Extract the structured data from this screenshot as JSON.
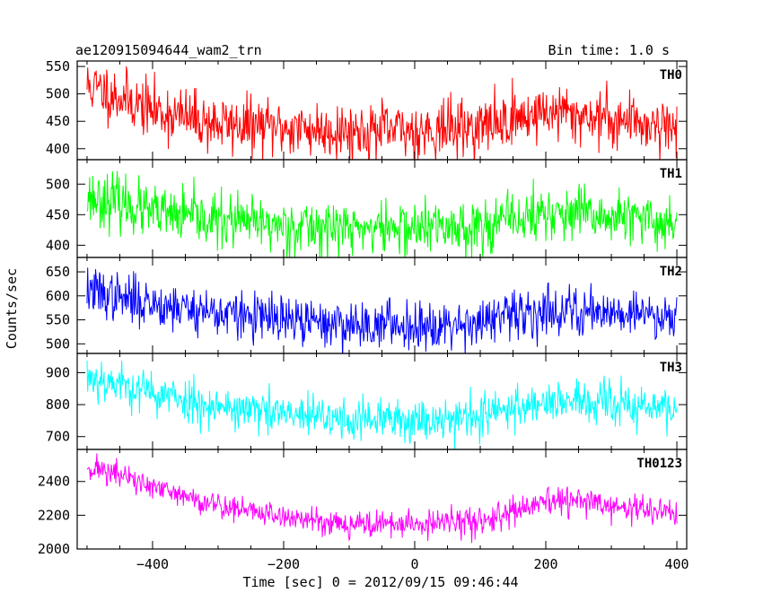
{
  "chart_data": {
    "type": "line",
    "title": "ae120915094644_wam2_trn",
    "subtitle": "Bin time: 1.0 s",
    "xlabel": "Time [sec] 0 = 2012/09/15 09:46:44",
    "ylabel": "Counts/sec",
    "xlim": [
      -515,
      415
    ],
    "x_ticks": [
      -400,
      -200,
      0,
      200,
      400
    ],
    "x_tick_labels": [
      "−400",
      "−200",
      "0",
      "200",
      "400"
    ],
    "x_range": [
      -500,
      400
    ],
    "series": [
      {
        "name": "TH0",
        "color": "#ff0000",
        "ylim": [
          380,
          560
        ],
        "y_ticks": [
          400,
          450,
          500,
          550
        ],
        "y_tick_labels": [
          "400",
          "450",
          "500",
          "550"
        ],
        "noise": 26,
        "seed": 11,
        "trend": {
          "x": [
            -500,
            -450,
            -400,
            -300,
            -200,
            -100,
            0,
            100,
            200,
            300,
            400
          ],
          "y": [
            515,
            495,
            470,
            445,
            438,
            432,
            433,
            440,
            468,
            455,
            440
          ]
        }
      },
      {
        "name": "TH1",
        "color": "#00ff00",
        "ylim": [
          380,
          540
        ],
        "y_ticks": [
          400,
          450,
          500
        ],
        "y_tick_labels": [
          "400",
          "450",
          "500"
        ],
        "noise": 22,
        "seed": 23,
        "trend": {
          "x": [
            -500,
            -450,
            -400,
            -300,
            -200,
            -100,
            0,
            100,
            200,
            300,
            400
          ],
          "y": [
            480,
            470,
            452,
            440,
            432,
            428,
            428,
            432,
            452,
            445,
            435
          ]
        }
      },
      {
        "name": "TH2",
        "color": "#0000ff",
        "ylim": [
          480,
          680
        ],
        "y_ticks": [
          500,
          550,
          600,
          650
        ],
        "y_tick_labels": [
          "500",
          "550",
          "600",
          "650"
        ],
        "noise": 25,
        "seed": 37,
        "trend": {
          "x": [
            -500,
            -450,
            -400,
            -300,
            -200,
            -100,
            0,
            100,
            200,
            300,
            400
          ],
          "y": [
            612,
            595,
            585,
            565,
            548,
            540,
            540,
            545,
            570,
            568,
            558
          ]
        }
      },
      {
        "name": "TH3",
        "color": "#00ffff",
        "ylim": [
          660,
          960
        ],
        "y_ticks": [
          700,
          800,
          900
        ],
        "y_tick_labels": [
          "700",
          "800",
          "900"
        ],
        "noise": 34,
        "seed": 53,
        "trend": {
          "x": [
            -500,
            -450,
            -400,
            -300,
            -200,
            -100,
            0,
            100,
            200,
            300,
            400
          ],
          "y": [
            890,
            865,
            835,
            795,
            768,
            752,
            752,
            765,
            812,
            800,
            785
          ]
        }
      },
      {
        "name": "TH0123",
        "color": "#ff00ff",
        "ylim": [
          2000,
          2590
        ],
        "y_ticks": [
          2000,
          2200,
          2400
        ],
        "y_tick_labels": [
          "2000",
          "2200",
          "2400"
        ],
        "noise": 40,
        "seed": 71,
        "trend": {
          "x": [
            -500,
            -450,
            -400,
            -300,
            -200,
            -100,
            0,
            100,
            200,
            250,
            300,
            400
          ],
          "y": [
            2490,
            2440,
            2360,
            2260,
            2190,
            2150,
            2145,
            2165,
            2270,
            2290,
            2250,
            2215
          ]
        }
      }
    ]
  }
}
